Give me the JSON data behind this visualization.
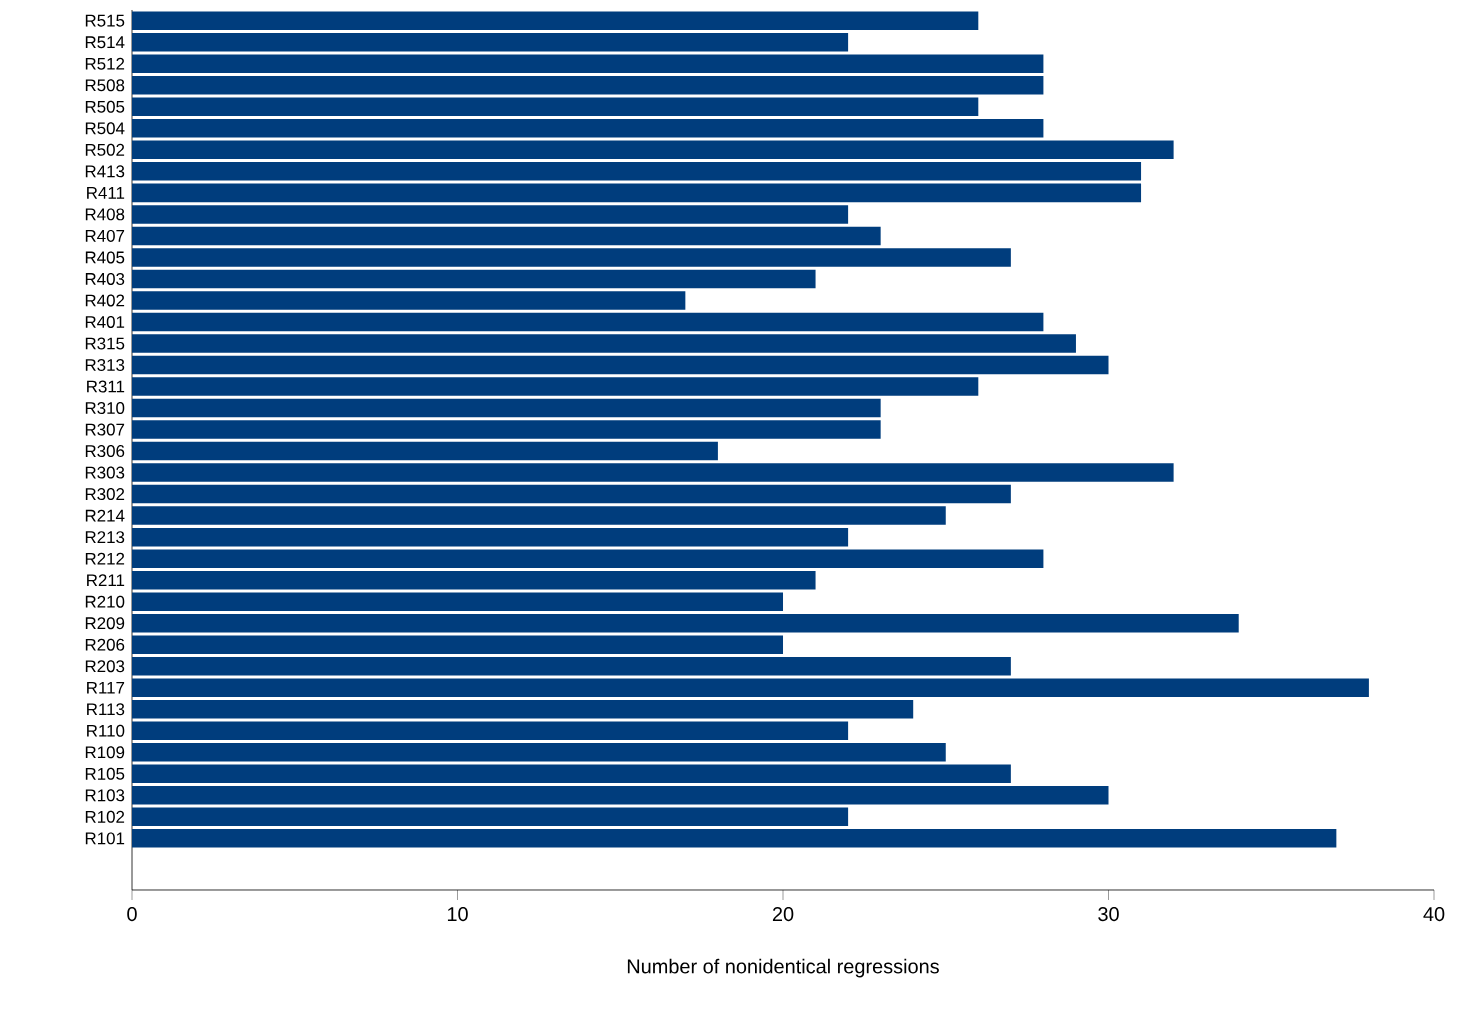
{
  "chart_data": {
    "type": "bar",
    "orientation": "horizontal",
    "xlabel": "Number of nonidentical regressions",
    "categories": [
      "R515",
      "R514",
      "R512",
      "R508",
      "R505",
      "R504",
      "R502",
      "R413",
      "R411",
      "R408",
      "R407",
      "R405",
      "R403",
      "R402",
      "R401",
      "R315",
      "R313",
      "R311",
      "R310",
      "R307",
      "R306",
      "R303",
      "R302",
      "R214",
      "R213",
      "R212",
      "R211",
      "R210",
      "R209",
      "R206",
      "R203",
      "R117",
      "R113",
      "R110",
      "R109",
      "R105",
      "R103",
      "R102",
      "R101"
    ],
    "values": [
      26,
      22,
      28,
      28,
      26,
      28,
      32,
      31,
      31,
      22,
      23,
      27,
      21,
      17,
      28,
      29,
      30,
      26,
      23,
      23,
      18,
      32,
      27,
      25,
      22,
      28,
      21,
      20,
      34,
      20,
      27,
      38,
      24,
      22,
      25,
      27,
      30,
      22,
      37
    ],
    "color": "#003d7d",
    "xlim": [
      0,
      40
    ],
    "xticks": [
      0,
      10,
      20,
      30,
      40
    ]
  }
}
